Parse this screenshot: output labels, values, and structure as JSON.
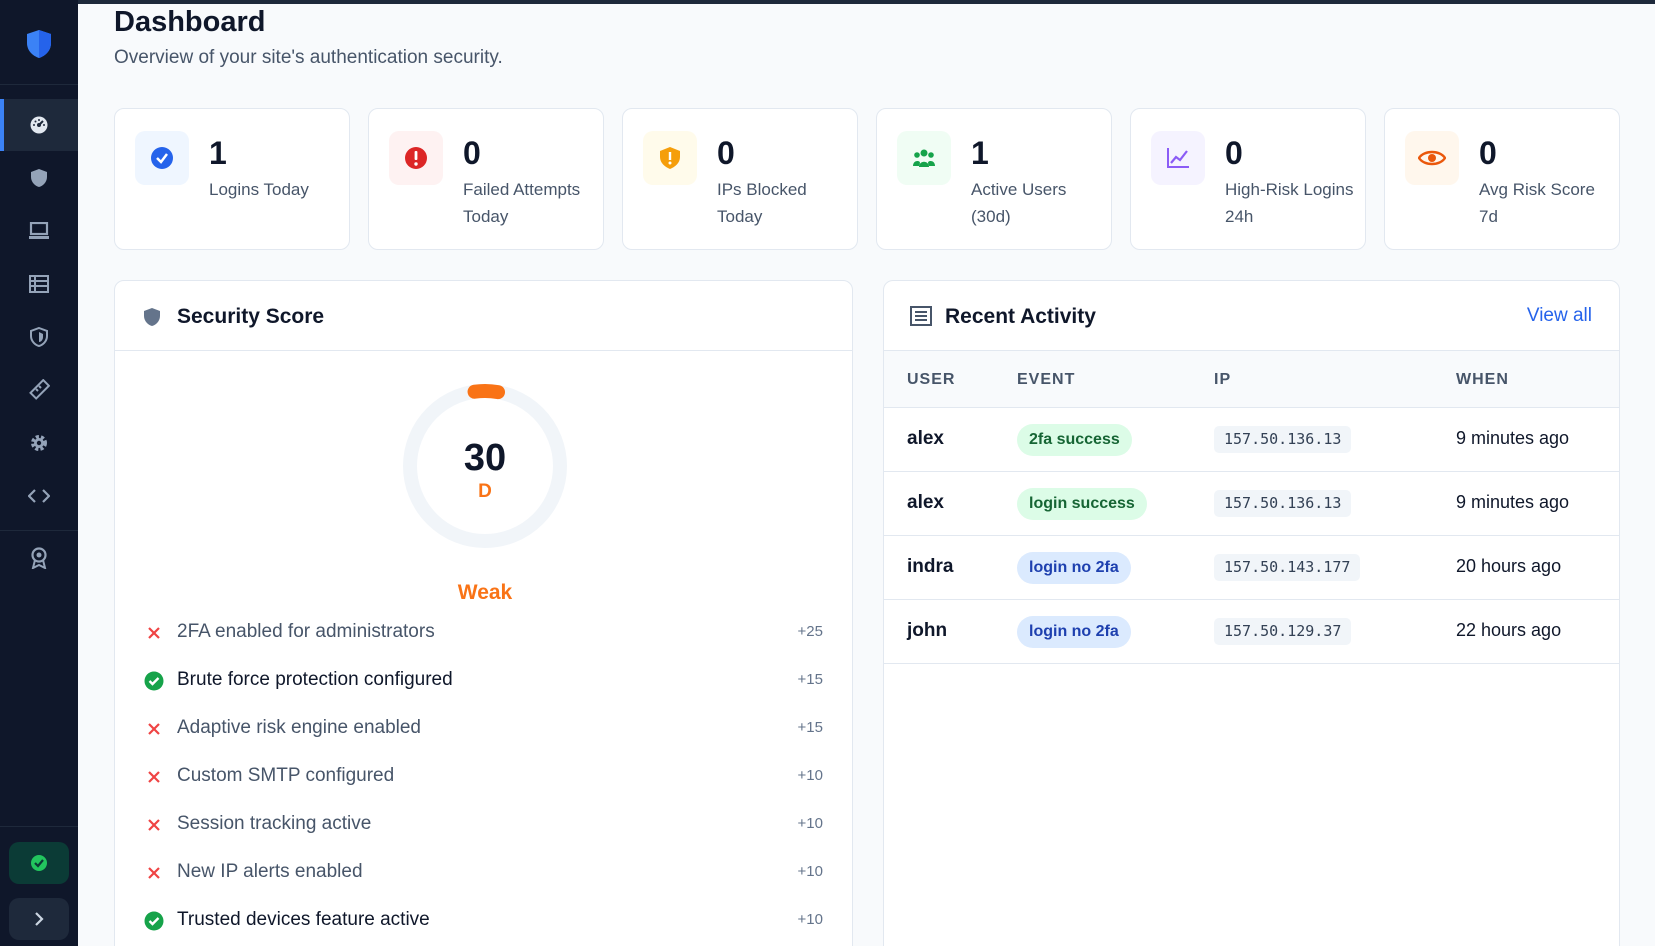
{
  "header": {
    "title": "Dashboard",
    "subtitle": "Overview of your site's authentication security."
  },
  "sidebar": {
    "logo_icon": "shield-icon",
    "items": [
      {
        "name": "dashboard",
        "icon": "gauge-icon",
        "active": true
      },
      {
        "name": "security",
        "icon": "shield-icon",
        "active": false
      },
      {
        "name": "sessions",
        "icon": "laptop-icon",
        "active": false
      },
      {
        "name": "logs",
        "icon": "list-icon",
        "active": false
      },
      {
        "name": "ip-rules",
        "icon": "shield-half-icon",
        "active": false
      },
      {
        "name": "tools",
        "icon": "ruler-icon",
        "active": false
      },
      {
        "name": "settings",
        "icon": "gear-icon",
        "active": false
      },
      {
        "name": "developer",
        "icon": "code-icon",
        "active": false
      },
      {
        "name": "badge",
        "icon": "award-icon",
        "active": false
      }
    ],
    "status_icon": "check-circle-icon",
    "toggle_icon": "chevron-right-icon"
  },
  "stats": [
    {
      "value": "1",
      "label": "Logins Today",
      "icon": "check-badge-icon",
      "color": "#2563eb",
      "bg": "#eff6ff"
    },
    {
      "value": "0",
      "label": "Failed Attempts Today",
      "icon": "alert-icon",
      "color": "#dc2626",
      "bg": "#fef2f2"
    },
    {
      "value": "0",
      "label": "IPs Blocked Today",
      "icon": "shield-warning-icon",
      "color": "#f59e0b",
      "bg": "#fffbeb"
    },
    {
      "value": "1",
      "label": "Active Users (30d)",
      "icon": "users-icon",
      "color": "#16a34a",
      "bg": "#f0fdf4"
    },
    {
      "value": "0",
      "label": "High-Risk Logins 24h",
      "icon": "chart-line-icon",
      "color": "#8b5cf6",
      "bg": "#f5f3ff"
    },
    {
      "value": "0",
      "label": "Avg Risk Score 7d",
      "icon": "eye-icon",
      "color": "#ea580c",
      "bg": "#fff7ed"
    }
  ],
  "security_score": {
    "title": "Security Score",
    "score": "30",
    "grade": "D",
    "label": "Weak",
    "progress": 0.05,
    "accent": "#f97316",
    "checks": [
      {
        "label": "2FA enabled for administrators",
        "points": "+25",
        "passed": false
      },
      {
        "label": "Brute force protection configured",
        "points": "+15",
        "passed": true
      },
      {
        "label": "Adaptive risk engine enabled",
        "points": "+15",
        "passed": false
      },
      {
        "label": "Custom SMTP configured",
        "points": "+10",
        "passed": false
      },
      {
        "label": "Session tracking active",
        "points": "+10",
        "passed": false
      },
      {
        "label": "New IP alerts enabled",
        "points": "+10",
        "passed": false
      },
      {
        "label": "Trusted devices feature active",
        "points": "+10",
        "passed": true
      }
    ]
  },
  "recent_activity": {
    "title": "Recent Activity",
    "view_all": "View all",
    "columns": [
      "USER",
      "EVENT",
      "IP",
      "WHEN"
    ],
    "rows": [
      {
        "user": "alex",
        "event": "2fa success",
        "event_type": "green",
        "ip": "157.50.136.13",
        "when": "9 minutes ago"
      },
      {
        "user": "alex",
        "event": "login success",
        "event_type": "green",
        "ip": "157.50.136.13",
        "when": "9 minutes ago"
      },
      {
        "user": "indra",
        "event": "login no 2fa",
        "event_type": "blue",
        "ip": "157.50.143.177",
        "when": "20 hours ago"
      },
      {
        "user": "john",
        "event": "login no 2fa",
        "event_type": "blue",
        "ip": "157.50.129.37",
        "when": "22 hours ago"
      }
    ]
  }
}
